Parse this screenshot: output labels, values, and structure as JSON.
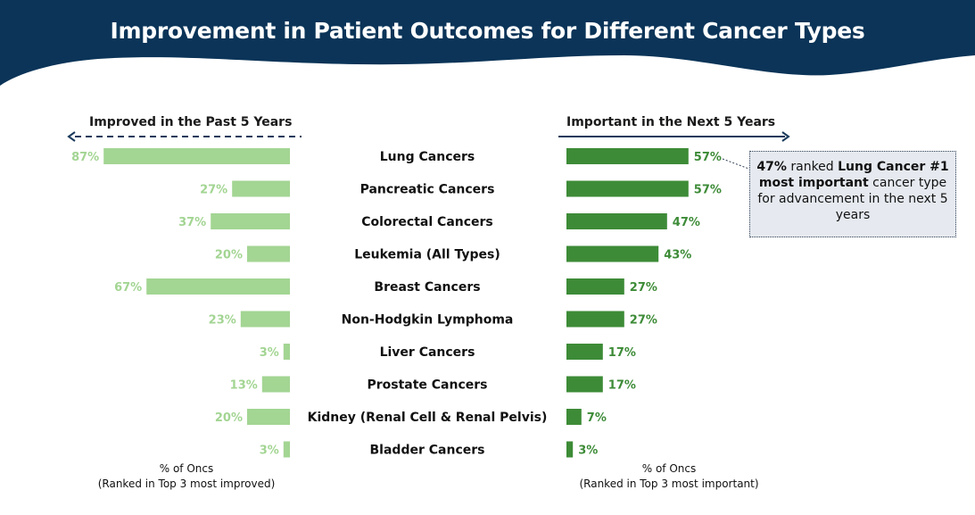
{
  "title": "Improvement in Patient Outcomes for Different Cancer Types",
  "left_header": "Improved in the Past 5 Years",
  "right_header": "Important in the Next 5 Years",
  "left_footer": [
    "% of Oncs",
    "(Ranked in Top 3 most improved)"
  ],
  "right_footer": [
    "% of Oncs",
    "(Ranked in Top 3 most important)"
  ],
  "callout": {
    "strong1": "47%",
    "text1": " ranked ",
    "strong2": "Lung Cancer #1 most important",
    "text2": " cancer type for advancement in the next 5 years"
  },
  "colors": {
    "banner": "#0b3458",
    "left_bar": "#a3d593",
    "right_bar": "#3d8b37",
    "arrow": "#1b3a5c"
  },
  "chart_data": {
    "type": "bar",
    "categories": [
      "Lung Cancers",
      "Pancreatic Cancers",
      "Colorectal Cancers",
      "Leukemia (All Types)",
      "Breast Cancers",
      "Non-Hodgkin Lymphoma",
      "Liver Cancers",
      "Prostate Cancers",
      "Kidney (Renal Cell & Renal Pelvis)",
      "Bladder Cancers"
    ],
    "series": [
      {
        "name": "Improved in the Past 5 Years",
        "values": [
          87,
          27,
          37,
          20,
          67,
          23,
          3,
          13,
          20,
          3
        ]
      },
      {
        "name": "Important in the Next 5 Years",
        "values": [
          57,
          57,
          47,
          43,
          27,
          27,
          17,
          17,
          7,
          3
        ]
      }
    ],
    "value_suffix": "%",
    "xlim": [
      0,
      100
    ]
  }
}
